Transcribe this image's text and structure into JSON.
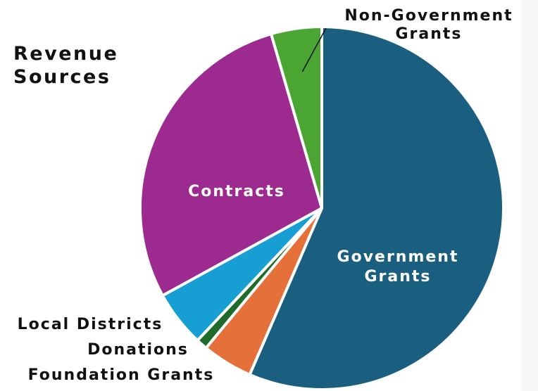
{
  "chart_data": {
    "type": "pie",
    "title_lines": [
      "Revenue",
      "Sources"
    ],
    "series": [
      {
        "name": "Government Grants",
        "label_lines": [
          "Government",
          "Grants"
        ],
        "value": 56.5,
        "color": "#1b5f80",
        "label_color": "#ffffff"
      },
      {
        "name": "Foundation Grants",
        "label_lines": [
          "Foundation Grants"
        ],
        "value": 4.5,
        "color": "#e5703a",
        "label_color": "#111111"
      },
      {
        "name": "Donations",
        "label_lines": [
          "Donations"
        ],
        "value": 1.0,
        "color": "#1e6b2b",
        "label_color": "#111111"
      },
      {
        "name": "Local Districts",
        "label_lines": [
          "Local Districts"
        ],
        "value": 5.0,
        "color": "#179fd3",
        "label_color": "#111111"
      },
      {
        "name": "Contracts",
        "label_lines": [
          "Contracts"
        ],
        "value": 28.5,
        "color": "#9d2a8f",
        "label_color": "#ffffff"
      },
      {
        "name": "Non-Government Grants",
        "label_lines": [
          "Non-Government",
          "Grants"
        ],
        "value": 4.5,
        "color": "#4aa533",
        "label_color": "#111111"
      }
    ]
  }
}
